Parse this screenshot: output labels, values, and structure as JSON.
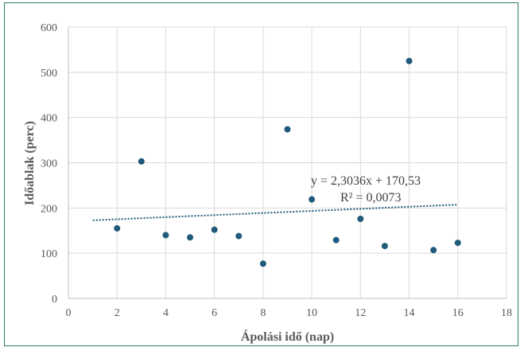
{
  "chart_data": {
    "type": "scatter",
    "title": "",
    "xlabel": "Ápolási idő (nap)",
    "ylabel": "Időablak (perc)",
    "xlim": [
      0,
      18
    ],
    "ylim": [
      0,
      600
    ],
    "xticks": [
      0,
      2,
      4,
      6,
      8,
      10,
      12,
      14,
      16,
      18
    ],
    "yticks": [
      0,
      100,
      200,
      300,
      400,
      500,
      600
    ],
    "grid": true,
    "legend": "none",
    "series": [
      {
        "color": "#1f5a7a",
        "points": [
          {
            "x": 2,
            "y": 155
          },
          {
            "x": 3,
            "y": 303
          },
          {
            "x": 4,
            "y": 140
          },
          {
            "x": 5,
            "y": 135
          },
          {
            "x": 6,
            "y": 152
          },
          {
            "x": 7,
            "y": 138
          },
          {
            "x": 8,
            "y": 77
          },
          {
            "x": 9,
            "y": 374
          },
          {
            "x": 10,
            "y": 219
          },
          {
            "x": 11,
            "y": 129
          },
          {
            "x": 12,
            "y": 176
          },
          {
            "x": 13,
            "y": 116
          },
          {
            "x": 14,
            "y": 525
          },
          {
            "x": 15,
            "y": 107
          },
          {
            "x": 16,
            "y": 123
          }
        ]
      }
    ],
    "trendline": {
      "type": "linear",
      "slope": 2.3036,
      "intercept": 170.53,
      "x_range": [
        1,
        16
      ],
      "color": "#1f5a7a",
      "equation_label": "y = 2,3036x + 170,53",
      "r2_label": "R² = 0,0073"
    }
  }
}
